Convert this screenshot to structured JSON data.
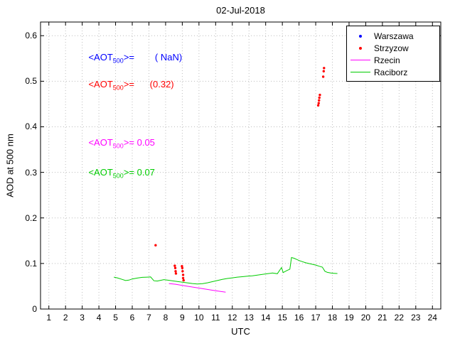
{
  "chart_data": {
    "type": "mixed",
    "title": "02-Jul-2018",
    "xlabel": "UTC",
    "ylabel": "AOD at 500 nm",
    "xlim": [
      0.5,
      24.5
    ],
    "ylim": [
      0,
      0.63
    ],
    "xticks": [
      1,
      2,
      3,
      4,
      5,
      6,
      7,
      8,
      9,
      10,
      11,
      12,
      13,
      14,
      15,
      16,
      17,
      18,
      19,
      20,
      21,
      22,
      23,
      24
    ],
    "yticks": [
      0,
      0.1,
      0.2,
      0.3,
      0.4,
      0.5,
      0.6
    ],
    "ytick_labels": [
      "0",
      "0.1",
      "0.2",
      "0.3",
      "0.4",
      "0.5",
      "0.6"
    ],
    "grid": true,
    "legend": {
      "position": "top-right",
      "entries": [
        {
          "label": "Warszawa",
          "marker": "dot",
          "color": "#0000ff"
        },
        {
          "label": "Strzyzow",
          "marker": "dot",
          "color": "#ff0000"
        },
        {
          "label": "Rzecin",
          "marker": "line",
          "color": "#ff00ff"
        },
        {
          "label": "Raciborz",
          "marker": "line",
          "color": "#00cc00"
        }
      ]
    },
    "annotations": [
      {
        "prefix": "<AOT",
        "sub": "500",
        "suffix": ">=",
        "value": "        ( NaN)",
        "color": "#0000ff"
      },
      {
        "prefix": "<AOT",
        "sub": "500",
        "suffix": ">=",
        "value": "      (0.32)",
        "color": "#ff0000"
      },
      {
        "prefix": "<AOT",
        "sub": "500",
        "suffix": ">=",
        "value": " 0.05",
        "color": "#ff00ff"
      },
      {
        "prefix": "<AOT",
        "sub": "500",
        "suffix": ">=",
        "value": " 0.07",
        "color": "#00cc00"
      }
    ],
    "series": [
      {
        "name": "Warszawa",
        "type": "scatter",
        "color": "#0000ff",
        "points": []
      },
      {
        "name": "Strzyzow",
        "type": "scatter",
        "color": "#ff0000",
        "points": [
          [
            7.4,
            0.14
          ],
          [
            8.55,
            0.095
          ],
          [
            8.58,
            0.09
          ],
          [
            8.6,
            0.083
          ],
          [
            8.62,
            0.078
          ],
          [
            8.98,
            0.094
          ],
          [
            9.0,
            0.09
          ],
          [
            9.02,
            0.083
          ],
          [
            9.05,
            0.075
          ],
          [
            9.05,
            0.068
          ],
          [
            9.08,
            0.063
          ],
          [
            17.15,
            0.447
          ],
          [
            17.18,
            0.452
          ],
          [
            17.2,
            0.458
          ],
          [
            17.22,
            0.464
          ],
          [
            17.25,
            0.47
          ],
          [
            17.45,
            0.51
          ],
          [
            17.48,
            0.522
          ],
          [
            17.5,
            0.529
          ]
        ]
      },
      {
        "name": "Rzecin",
        "type": "line",
        "color": "#ff00ff",
        "points": [
          [
            8.2,
            0.056
          ],
          [
            8.6,
            0.0545
          ],
          [
            9.0,
            0.052
          ],
          [
            9.5,
            0.049
          ],
          [
            10.0,
            0.046
          ],
          [
            10.5,
            0.043
          ],
          [
            11.0,
            0.04
          ],
          [
            11.3,
            0.0385
          ],
          [
            11.6,
            0.037
          ]
        ]
      },
      {
        "name": "Raciborz",
        "type": "line",
        "color": "#00cc00",
        "points": [
          [
            4.9,
            0.07
          ],
          [
            5.1,
            0.0685
          ],
          [
            5.4,
            0.065
          ],
          [
            5.6,
            0.0625
          ],
          [
            5.8,
            0.0635
          ],
          [
            6.0,
            0.066
          ],
          [
            6.3,
            0.068
          ],
          [
            6.6,
            0.0695
          ],
          [
            6.9,
            0.07
          ],
          [
            7.1,
            0.0705
          ],
          [
            7.3,
            0.062
          ],
          [
            7.5,
            0.0615
          ],
          [
            7.7,
            0.063
          ],
          [
            7.9,
            0.0645
          ],
          [
            8.1,
            0.0635
          ],
          [
            8.4,
            0.062
          ],
          [
            8.7,
            0.0605
          ],
          [
            9.0,
            0.059
          ],
          [
            9.3,
            0.0575
          ],
          [
            9.6,
            0.056
          ],
          [
            9.9,
            0.055
          ],
          [
            10.2,
            0.0555
          ],
          [
            10.5,
            0.0575
          ],
          [
            10.8,
            0.06
          ],
          [
            11.1,
            0.0625
          ],
          [
            11.4,
            0.065
          ],
          [
            11.7,
            0.067
          ],
          [
            12.0,
            0.0685
          ],
          [
            12.3,
            0.07
          ],
          [
            12.6,
            0.071
          ],
          [
            12.9,
            0.072
          ],
          [
            13.2,
            0.073
          ],
          [
            13.5,
            0.0745
          ],
          [
            13.8,
            0.076
          ],
          [
            14.1,
            0.0775
          ],
          [
            14.4,
            0.079
          ],
          [
            14.7,
            0.0775
          ],
          [
            14.95,
            0.091
          ],
          [
            15.05,
            0.08
          ],
          [
            15.25,
            0.084
          ],
          [
            15.45,
            0.0875
          ],
          [
            15.55,
            0.113
          ],
          [
            15.7,
            0.1115
          ],
          [
            15.85,
            0.109
          ],
          [
            16.0,
            0.1065
          ],
          [
            16.2,
            0.104
          ],
          [
            16.4,
            0.1015
          ],
          [
            16.7,
            0.099
          ],
          [
            17.0,
            0.0965
          ],
          [
            17.2,
            0.094
          ],
          [
            17.4,
            0.092
          ],
          [
            17.55,
            0.083
          ],
          [
            17.7,
            0.0805
          ],
          [
            17.9,
            0.079
          ],
          [
            18.1,
            0.0785
          ],
          [
            18.3,
            0.078
          ]
        ]
      }
    ]
  }
}
